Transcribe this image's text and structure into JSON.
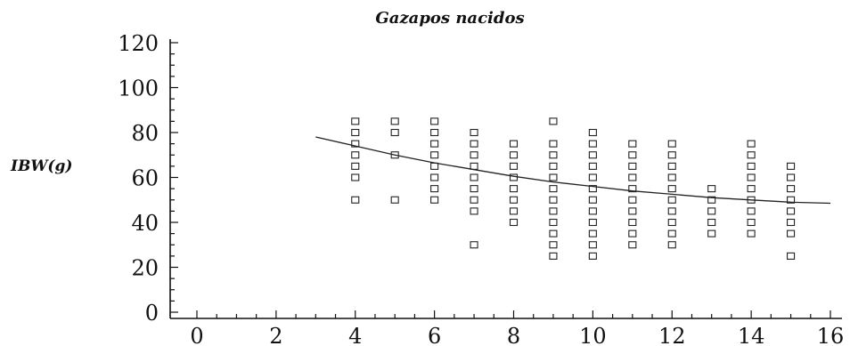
{
  "chart_data": {
    "type": "scatter",
    "title": "Gazapos nacidos",
    "xlabel": "",
    "ylabel": "IBW(g)",
    "xlim": [
      0,
      16
    ],
    "ylim": [
      0,
      120
    ],
    "xticks": [
      "0",
      "2",
      "4",
      "6",
      "8",
      "10",
      "12",
      "14",
      "16"
    ],
    "yticks": [
      "0",
      "20",
      "40",
      "60",
      "80",
      "100",
      "120"
    ],
    "grid": false,
    "legend": "none",
    "marker": "open-square",
    "points": [
      {
        "x": 4,
        "y": [
          85,
          80,
          75,
          70,
          65,
          60,
          50
        ]
      },
      {
        "x": 5,
        "y": [
          85,
          80,
          70,
          50
        ]
      },
      {
        "x": 6,
        "y": [
          85,
          80,
          75,
          70,
          65,
          60,
          55,
          50
        ]
      },
      {
        "x": 7,
        "y": [
          80,
          75,
          70,
          65,
          60,
          55,
          50,
          45,
          30
        ]
      },
      {
        "x": 8,
        "y": [
          75,
          70,
          65,
          60,
          55,
          50,
          45,
          40
        ]
      },
      {
        "x": 9,
        "y": [
          85,
          75,
          70,
          65,
          60,
          55,
          50,
          45,
          40,
          35,
          30,
          25
        ]
      },
      {
        "x": 10,
        "y": [
          80,
          75,
          70,
          65,
          60,
          55,
          50,
          45,
          40,
          35,
          30,
          25
        ]
      },
      {
        "x": 11,
        "y": [
          75,
          70,
          65,
          60,
          55,
          50,
          45,
          40,
          35,
          30
        ]
      },
      {
        "x": 12,
        "y": [
          75,
          70,
          65,
          60,
          55,
          50,
          45,
          40,
          35,
          30
        ]
      },
      {
        "x": 13,
        "y": [
          55,
          50,
          45,
          40,
          35
        ]
      },
      {
        "x": 14,
        "y": [
          75,
          70,
          65,
          60,
          55,
          50,
          45,
          40,
          35
        ]
      },
      {
        "x": 15,
        "y": [
          65,
          60,
          55,
          50,
          45,
          40,
          35,
          25
        ]
      }
    ],
    "trend": {
      "x": [
        3,
        4,
        5,
        6,
        7,
        8,
        9,
        10,
        11,
        12,
        13,
        14,
        15,
        16
      ],
      "y": [
        78,
        74,
        70,
        66.5,
        63.5,
        60.5,
        58,
        56,
        54,
        52.5,
        51,
        50,
        49,
        48.5
      ]
    }
  }
}
